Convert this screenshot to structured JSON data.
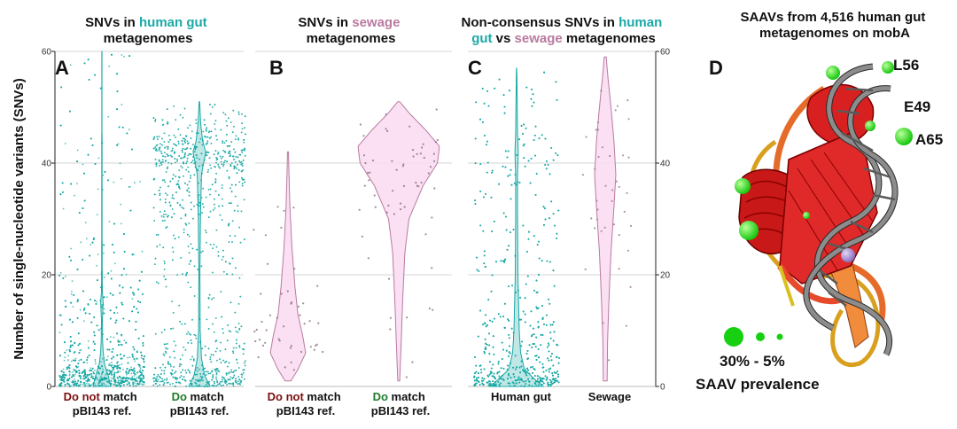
{
  "colors": {
    "teal": "#1aa9a6",
    "pink": "#b97aa0",
    "pinkFill": "#f9ddf1",
    "darkred": "#7a1010",
    "green": "#1e7d2a"
  },
  "y_axis_label": "Number of single-nucleotide variants (SNVs)",
  "chart_data": [
    {
      "panel": "A",
      "type": "violin",
      "title_parts": [
        "SNVs in ",
        "human gut",
        "metagenomes"
      ],
      "ylim": [
        0,
        60
      ],
      "yticks": [
        "0",
        "20",
        "40",
        "60"
      ],
      "categories": [
        {
          "label_neg": "Do not",
          "label_rest": " match",
          "label2": "pBI143 ref.",
          "points": 3500,
          "density": [
            [
              0,
              10
            ],
            [
              2,
              7
            ],
            [
              4,
              3
            ],
            [
              6,
              1.5
            ],
            [
              8,
              0.8
            ],
            [
              12,
              0.5
            ],
            [
              15,
              1.4
            ],
            [
              17,
              0.5
            ],
            [
              22,
              0.3
            ],
            [
              30,
              0.2
            ],
            [
              45,
              0.15
            ],
            [
              60,
              0.1
            ]
          ]
        },
        {
          "label_pos": "Do",
          "label_rest": " match",
          "label2": "pBI143 ref.",
          "points": 2000,
          "density": [
            [
              0,
              4
            ],
            [
              2,
              2
            ],
            [
              5,
              0.8
            ],
            [
              10,
              0.3
            ],
            [
              20,
              0.2
            ],
            [
              30,
              0.4
            ],
            [
              38,
              0.8
            ],
            [
              41,
              2
            ],
            [
              42,
              2.4
            ],
            [
              44,
              1.2
            ],
            [
              47,
              0.5
            ],
            [
              51,
              0.1
            ]
          ]
        }
      ]
    },
    {
      "panel": "B",
      "type": "violin",
      "title_parts": [
        "SNVs in ",
        "sewage",
        "metagenomes"
      ],
      "ylim": [
        0,
        60
      ],
      "categories": [
        {
          "label_neg": "Do not",
          "label_rest": " match",
          "label2": "pBI143 ref.",
          "points": 45,
          "density": [
            [
              1,
              0.3
            ],
            [
              3,
              1
            ],
            [
              6,
              1.8
            ],
            [
              9,
              1.5
            ],
            [
              13,
              1
            ],
            [
              18,
              0.7
            ],
            [
              25,
              0.4
            ],
            [
              32,
              0.2
            ],
            [
              38,
              0.1
            ],
            [
              42,
              0.05
            ]
          ]
        },
        {
          "label_pos": "Do",
          "label_rest": " match",
          "label2": "pBI143 ref.",
          "points": 60,
          "density": [
            [
              1,
              0.05
            ],
            [
              8,
              0.12
            ],
            [
              16,
              0.2
            ],
            [
              24,
              0.3
            ],
            [
              30,
              0.5
            ],
            [
              36,
              1.2
            ],
            [
              40,
              1.9
            ],
            [
              43,
              2
            ],
            [
              46,
              1.3
            ],
            [
              49,
              0.5
            ],
            [
              51,
              0.05
            ]
          ]
        }
      ]
    },
    {
      "panel": "C",
      "type": "violin",
      "title_parts": [
        "Non-consensus SNVs in ",
        "human",
        "gut",
        " vs ",
        "sewage",
        " metagenomes"
      ],
      "ylim": [
        0,
        60
      ],
      "yticks": [
        "0",
        "20",
        "40",
        "60"
      ],
      "categories": [
        {
          "label": "Human gut",
          "points": 3000,
          "density": [
            [
              0,
              4
            ],
            [
              1,
              3
            ],
            [
              3,
              1.2
            ],
            [
              6,
              0.6
            ],
            [
              10,
              0.4
            ],
            [
              20,
              0.2
            ],
            [
              30,
              0.15
            ],
            [
              38,
              0.15
            ],
            [
              42,
              0.25
            ],
            [
              45,
              0.15
            ],
            [
              55,
              0.05
            ],
            [
              57,
              0.02
            ]
          ]
        },
        {
          "label": "Sewage",
          "points": 40,
          "density": [
            [
              1,
              0.1
            ],
            [
              8,
              0.12
            ],
            [
              16,
              0.2
            ],
            [
              24,
              0.3
            ],
            [
              32,
              0.45
            ],
            [
              38,
              0.55
            ],
            [
              44,
              0.45
            ],
            [
              50,
              0.3
            ],
            [
              55,
              0.15
            ],
            [
              59,
              0.05
            ]
          ]
        }
      ]
    }
  ],
  "panel_d": {
    "title_lines": [
      "SAAVs from 4,516 human gut",
      "metagenomes on mobA"
    ],
    "label": "D",
    "residues": [
      "L56",
      "E49",
      "A65"
    ],
    "legend_range": "30% - 5%",
    "legend_caption": "SAAV prevalence"
  }
}
